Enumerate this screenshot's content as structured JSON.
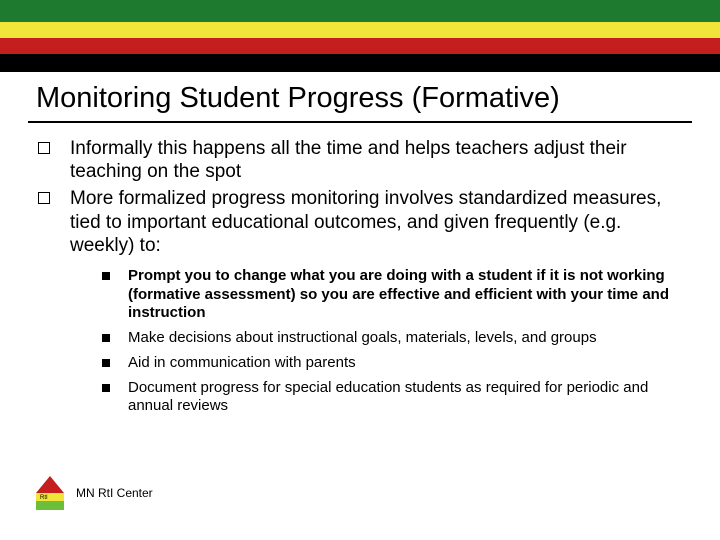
{
  "header": {
    "bars": [
      {
        "color": "#1e7a2e",
        "height": 22
      },
      {
        "color": "#f2e53a",
        "height": 16
      },
      {
        "color": "#c41e1e",
        "height": 16
      },
      {
        "color": "#000000",
        "height": 18
      }
    ]
  },
  "title": "Monitoring Student Progress (Formative)",
  "bullets": [
    {
      "text": "Informally this happens all the time and helps teachers adjust their teaching on the spot",
      "children": []
    },
    {
      "text": "More formalized progress monitoring involves standardized measures, tied to important educational outcomes, and given frequently (e.g. weekly) to:",
      "children": [
        {
          "text": "Prompt you to change what you are doing with a student if it is not working (formative assessment) so you are effective and efficient with your time and instruction",
          "bold": true
        },
        {
          "text": "Make decisions about instructional goals, materials, levels, and groups",
          "bold": false
        },
        {
          "text": "Aid in communication with parents",
          "bold": false
        },
        {
          "text": "Document progress for special education students as required for periodic and annual reviews",
          "bold": false
        }
      ]
    }
  ],
  "footer": {
    "logo": {
      "colors": {
        "top": "#c41e1e",
        "mid": "#f2e53a",
        "bottom": "#6bbf3a"
      },
      "label": "RtI"
    },
    "text": "MN RtI Center"
  }
}
